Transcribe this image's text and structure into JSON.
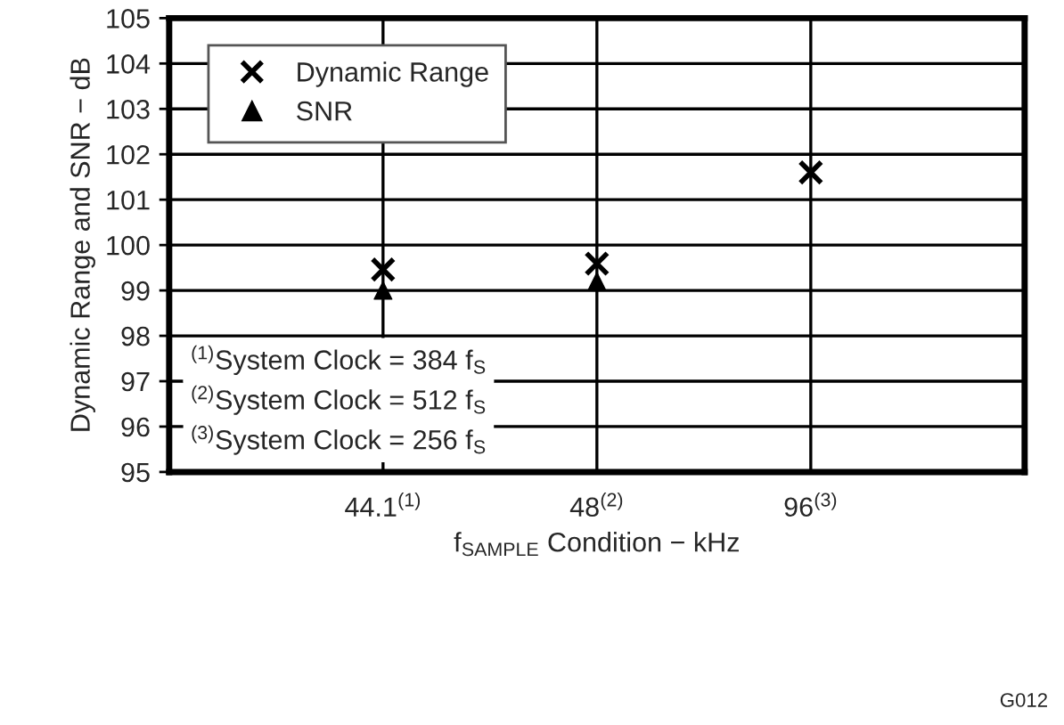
{
  "chart_data": {
    "type": "scatter",
    "categories": [
      "44.1$^{(1)}$",
      "48$^{(2)}$",
      "96$^{(3)}$"
    ],
    "series": [
      {
        "name": "Dynamic Range",
        "color": "#000000",
        "marker": "cross",
        "values": [
          99.46,
          99.59,
          101.6
        ]
      },
      {
        "name": "SNR",
        "color": "#000000",
        "marker": "triangle",
        "values": [
          99.0,
          99.2,
          null
        ]
      }
    ],
    "xlabel": "f$_{SAMPLE}$ Condition − kHz",
    "ylabel": "Dynamic Range and SNR − dB",
    "ylim": [
      95,
      105
    ],
    "yticks": [
      95,
      96,
      97,
      98,
      99,
      100,
      101,
      102,
      103,
      104,
      105
    ],
    "grid": true,
    "legend": "top left",
    "annotations": [
      "$^{(1)}$System Clock = 384 f$_{S}$",
      "$^{(2)}$System Clock = 512 f$_{S}$",
      "$^{(3)}$System Clock = 256 f$_{S}$",
      "G012"
    ]
  }
}
